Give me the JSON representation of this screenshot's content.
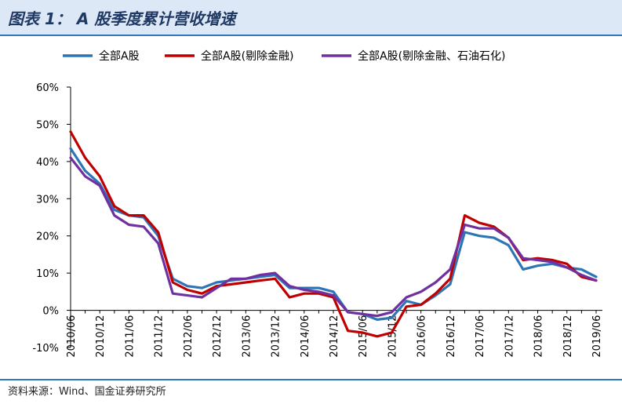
{
  "header": {
    "title": "图表 1： A 股季度累计营收增速"
  },
  "footer": {
    "source": "资料来源：Wind、国金证券研究所"
  },
  "chart_data": {
    "type": "line",
    "title": "A 股季度累计营收增速",
    "xlabel": "",
    "ylabel": "",
    "ylim": [
      -10,
      60
    ],
    "yticks": [
      "60%",
      "50%",
      "40%",
      "30%",
      "20%",
      "10%",
      "0%",
      "-10%"
    ],
    "ytick_values": [
      60,
      50,
      40,
      30,
      20,
      10,
      0,
      -10
    ],
    "grid": false,
    "legend_position": "top",
    "x": [
      "2010/06",
      "2010/09",
      "2010/12",
      "2011/03",
      "2011/06",
      "2011/09",
      "2011/12",
      "2012/03",
      "2012/06",
      "2012/09",
      "2012/12",
      "2013/03",
      "2013/06",
      "2013/09",
      "2013/12",
      "2014/03",
      "2014/06",
      "2014/09",
      "2014/12",
      "2015/03",
      "2015/06",
      "2015/09",
      "2015/12",
      "2016/03",
      "2016/06",
      "2016/09",
      "2016/12",
      "2017/03",
      "2017/06",
      "2017/09",
      "2017/12",
      "2018/03",
      "2018/06",
      "2018/09",
      "2018/12",
      "2019/03",
      "2019/06"
    ],
    "xtick_labels": [
      "2010/06",
      "2010/12",
      "2011/06",
      "2011/12",
      "2012/06",
      "2012/12",
      "2013/06",
      "2013/12",
      "2014/06",
      "2014/12",
      "2015/06",
      "2015/12",
      "2016/06",
      "2016/12",
      "2017/06",
      "2017/12",
      "2018/06",
      "2018/12",
      "2019/06"
    ],
    "series": [
      {
        "name": "全部A股",
        "color": "#2e75b6",
        "values": [
          43.5,
          37.5,
          34,
          27,
          25.5,
          25,
          20,
          8.5,
          6.5,
          6,
          7.5,
          8,
          8.5,
          9,
          9.5,
          6,
          6,
          6,
          5,
          -0.5,
          -1,
          -2.5,
          -2,
          2.5,
          1.5,
          4,
          7,
          21,
          20,
          19.5,
          17.5,
          11,
          12,
          12.5,
          11.5,
          11,
          9
        ]
      },
      {
        "name": "全部A股(剔除金融)",
        "color": "#c00000",
        "values": [
          48,
          41,
          36,
          28,
          25.5,
          25.5,
          21,
          7.5,
          5.5,
          4.5,
          6.5,
          7,
          7.5,
          8,
          8.5,
          3.5,
          4.5,
          4.5,
          3.5,
          -5.5,
          -6,
          -7,
          -6,
          1,
          1.5,
          4.5,
          8.5,
          25.5,
          23.5,
          22.5,
          19.5,
          13.5,
          14,
          13.5,
          12.5,
          9,
          8
        ]
      },
      {
        "name": "全部A股(剔除金融、石油石化)",
        "color": "#7030a0",
        "values": [
          41,
          36,
          33.5,
          25.5,
          23,
          22.5,
          18,
          4.5,
          4,
          3.5,
          6,
          8.5,
          8.5,
          9.5,
          10,
          6.5,
          5.5,
          5,
          4,
          -0.5,
          -1,
          -1.5,
          -0.5,
          3.5,
          5,
          7.5,
          11,
          23,
          22,
          22,
          19.5,
          14,
          13.5,
          13,
          11.5,
          9.5,
          8
        ]
      }
    ]
  }
}
